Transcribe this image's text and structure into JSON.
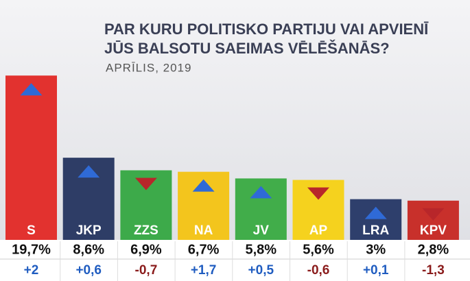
{
  "chart_data": {
    "type": "bar",
    "title": [
      "PAR KURU POLITISKO PARTIJU VAI APVIENĪ",
      "JŪS BALSOTU SAEIMAS VĒLĒŠANĀS?"
    ],
    "subtitle": "APRĪLIS, 2019",
    "categories": [
      "S",
      "JKP",
      "ZZS",
      "NA",
      "JV",
      "AP",
      "LRA",
      "KPV"
    ],
    "values": [
      19.7,
      8.6,
      6.9,
      6.7,
      5.8,
      5.6,
      3,
      2.8
    ],
    "value_labels": [
      "19,7%",
      "8,6%",
      "6,9%",
      "6,7%",
      "5,8%",
      "5,6%",
      "3%",
      "2,8%"
    ],
    "changes": [
      2,
      0.6,
      -0.7,
      1.7,
      0.5,
      -0.6,
      0.1,
      -1.3
    ],
    "change_labels": [
      "+2",
      "+0,6",
      "-0,7",
      "+1,7",
      "+0,5",
      "-0,6",
      "+0,1",
      "-1,3"
    ],
    "colors": [
      "#e2322f",
      "#2e3d66",
      "#3daa4a",
      "#f3c51d",
      "#41ad4a",
      "#f5d21e",
      "#2e3f6c",
      "#c8302b"
    ],
    "up_color": "#2f6ad6",
    "down_color": "#b8262a",
    "up_text_color": "#1f5cc0",
    "down_text_color": "#8a1b1b"
  }
}
